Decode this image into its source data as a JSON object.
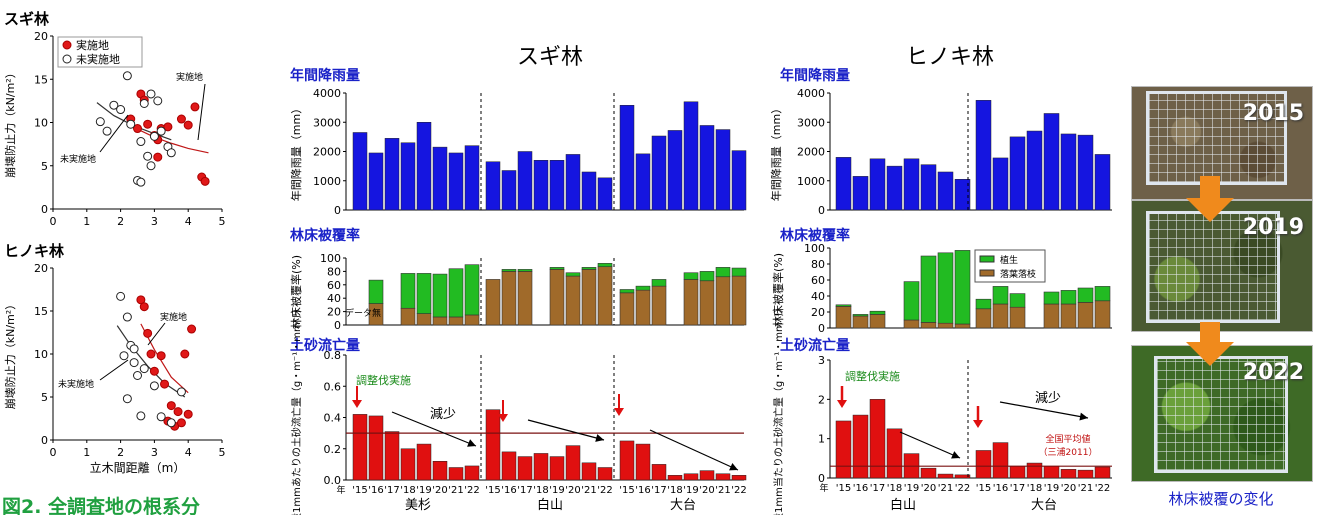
{
  "figure_title": "図2. 全調査地の根系分",
  "scatter_panels": [
    {
      "title": "スギ林",
      "ylabel": "崩壊防止力（kN/m²）",
      "xlabel": "",
      "legend": [
        "実施地",
        "未実施地"
      ],
      "annotations": [
        "実施地",
        "未実施地"
      ],
      "yticks": [
        "0",
        "5",
        "10",
        "15",
        "20"
      ],
      "xticks": [
        "0",
        "1",
        "2",
        "3",
        "4",
        "5"
      ]
    },
    {
      "title": "ヒノキ林",
      "ylabel": "崩壊防止力（kN/m²）",
      "xlabel": "立木間距離（m）",
      "annotations": [
        "実施地",
        "未実施地"
      ],
      "yticks": [
        "0",
        "5",
        "10",
        "15",
        "20"
      ],
      "xticks": [
        "0",
        "1",
        "2",
        "3",
        "4",
        "5"
      ]
    }
  ],
  "sugi": {
    "title": "スギ林",
    "rain_heading": "年間降雨量",
    "rain_ylabel": "年間降雨量（mm）",
    "cover_heading": "林床被覆率",
    "cover_ylabel": "林床被覆率(%)",
    "no_data": "データ無",
    "sed_heading": "土砂流亡量",
    "sed_ylabel": "雨量1mmあたりの土砂流亡量（g・m⁻¹・mm⁻¹）",
    "thinning_label": "調整伐実施",
    "decrease_label": "減少",
    "year_prefix": "年",
    "sites": [
      "美杉",
      "白山",
      "大台"
    ]
  },
  "hinoki": {
    "title": "ヒノキ林",
    "rain_heading": "年間降雨量",
    "rain_ylabel": "年間降雨量（mm）",
    "cover_heading": "林床被覆率",
    "cover_ylabel": "林床被覆率(%)",
    "cover_legend": [
      "植生",
      "落葉落枝"
    ],
    "sed_heading": "土砂流亡量",
    "sed_ylabel": "雨量1mm当たりの土砂流亡量（g・m⁻¹・mm⁻¹）",
    "thinning_label": "調整伐実施",
    "decrease_label": "減少",
    "national_avg": "全国平均値（三浦2011）",
    "year_prefix": "年",
    "sites": [
      "白山",
      "大台"
    ]
  },
  "photos": {
    "years": [
      "2015",
      "2019",
      "2022"
    ],
    "caption": "林床被覆の変化"
  },
  "colors": {
    "rain": "#1515e0",
    "vegetation": "#22bb22",
    "litter": "#a06a2a",
    "sediment": "#e01010",
    "heading": "#1a22c8",
    "arrow_red": "#e01010",
    "photo_arrow": "#f08a1c"
  },
  "chart_data": [
    {
      "type": "scatter",
      "panel": "スギ林",
      "xlim": [
        0,
        5
      ],
      "ylim": [
        0,
        20
      ],
      "series": [
        {
          "name": "実施地",
          "marker": "filled-red",
          "x": [
            2.3,
            2.6,
            2.7,
            3.0,
            3.1,
            3.2,
            3.4,
            3.8,
            4.0,
            4.2,
            4.4,
            4.5,
            2.5,
            2.8,
            3.1
          ],
          "y": [
            10.4,
            13.3,
            12.6,
            8.5,
            8.0,
            9.3,
            9.5,
            10.4,
            9.7,
            11.8,
            3.7,
            3.2,
            9.3,
            9.8,
            6.0
          ]
        },
        {
          "name": "未実施地",
          "marker": "open",
          "x": [
            1.4,
            1.6,
            1.8,
            2.0,
            2.2,
            2.3,
            2.5,
            2.6,
            2.7,
            2.8,
            2.9,
            3.0,
            3.1,
            3.2,
            3.4,
            3.5,
            2.6,
            2.9
          ],
          "y": [
            10.1,
            9.0,
            12.0,
            11.5,
            15.4,
            9.8,
            3.3,
            3.1,
            12.2,
            6.1,
            5.0,
            8.4,
            12.5,
            9.0,
            7.2,
            6.5,
            7.8,
            13.3
          ]
        }
      ],
      "trend_lines": [
        {
          "name": "実施地",
          "x": [
            2.3,
            3.0,
            3.5,
            4.0,
            4.6
          ],
          "y": [
            9.6,
            8.3,
            7.6,
            7.0,
            6.5
          ]
        },
        {
          "name": "未実施地",
          "x": [
            1.3,
            1.8,
            2.4,
            3.0,
            3.5
          ],
          "y": [
            12.3,
            10.8,
            9.6,
            8.7,
            8.0
          ]
        }
      ]
    },
    {
      "type": "scatter",
      "panel": "ヒノキ林",
      "xlim": [
        0,
        5
      ],
      "ylim": [
        0,
        20
      ],
      "xlabel": "立木間距離（m）",
      "series": [
        {
          "name": "実施地",
          "marker": "filled-red",
          "x": [
            2.6,
            2.7,
            2.9,
            3.0,
            3.3,
            3.4,
            3.6,
            3.7,
            3.8,
            4.0,
            4.1,
            2.8,
            3.2,
            3.5,
            3.9
          ],
          "y": [
            16.3,
            15.5,
            10.0,
            8.0,
            6.5,
            2.2,
            1.6,
            3.3,
            2.0,
            3.0,
            12.9,
            12.4,
            9.8,
            4.0,
            10.0
          ]
        },
        {
          "name": "未実施地",
          "marker": "open",
          "x": [
            2.0,
            2.1,
            2.2,
            2.3,
            2.4,
            2.5,
            2.6,
            2.2,
            3.2,
            3.5,
            3.8,
            2.7,
            2.4,
            3.0
          ],
          "y": [
            16.7,
            9.8,
            14.3,
            11.0,
            10.6,
            7.5,
            2.8,
            4.8,
            2.7,
            2.0,
            5.6,
            8.3,
            9.0,
            6.3
          ]
        }
      ],
      "trend_lines": [
        {
          "name": "実施地",
          "x": [
            2.6,
            3.0,
            3.5,
            4.0
          ],
          "y": [
            13.5,
            10.5,
            7.3,
            5.5
          ]
        },
        {
          "name": "未実施地",
          "x": [
            1.9,
            2.3,
            2.8,
            3.3,
            3.9
          ],
          "y": [
            13.3,
            11.0,
            8.6,
            6.6,
            5.0
          ]
        }
      ]
    },
    {
      "type": "bar",
      "panel": "スギ林 年間降雨量",
      "ylim": [
        0,
        4000
      ],
      "yticks": [
        "0",
        "1000",
        "2000",
        "3000",
        "4000"
      ],
      "groups": [
        {
          "site": "美杉",
          "values": [
            2650,
            1950,
            2450,
            2300,
            3000,
            2150,
            1950,
            2200
          ]
        },
        {
          "site": "白山",
          "values": [
            1650,
            1350,
            2000,
            1700,
            1700,
            1900,
            1300,
            1100
          ]
        },
        {
          "site": "大台",
          "values": [
            3580,
            1920,
            2530,
            2720,
            3700,
            2890,
            2750,
            2030
          ]
        }
      ]
    },
    {
      "type": "bar",
      "panel": "スギ林 林床被覆率",
      "ylim": [
        0,
        100
      ],
      "yticks": [
        "0",
        "20",
        "40",
        "60",
        "80",
        "100"
      ],
      "series_names": [
        "植生",
        "落葉落枝"
      ],
      "groups": [
        {
          "site": "美杉",
          "vegetation": [
            null,
            35,
            null,
            52,
            60,
            64,
            72,
            75
          ],
          "litter": [
            null,
            32,
            null,
            25,
            17,
            12,
            12,
            15
          ]
        },
        {
          "site": "白山",
          "vegetation": [
            0,
            3,
            3,
            null,
            3,
            5,
            3,
            5
          ],
          "litter": [
            68,
            80,
            80,
            null,
            83,
            73,
            83,
            87
          ]
        },
        {
          "site": "大台",
          "vegetation": [
            5,
            6,
            10,
            null,
            10,
            14,
            14,
            12
          ],
          "litter": [
            48,
            52,
            58,
            null,
            68,
            66,
            72,
            73
          ]
        }
      ]
    },
    {
      "type": "bar",
      "panel": "スギ林 土砂流亡量",
      "ylim": [
        0,
        0.8
      ],
      "yticks": [
        "0.0",
        "0.2",
        "0.4",
        "0.6",
        "0.8"
      ],
      "x_tick_labels": [
        "'15",
        "'16",
        "'17",
        "'18",
        "'19",
        "'20",
        "'21",
        "'22"
      ],
      "national_average": 0.3,
      "groups": [
        {
          "site": "美杉",
          "values": [
            0.42,
            0.41,
            0.31,
            0.2,
            0.23,
            0.12,
            0.08,
            0.09
          ]
        },
        {
          "site": "白山",
          "values": [
            0.45,
            0.18,
            0.15,
            0.17,
            0.15,
            0.22,
            0.11,
            0.08
          ]
        },
        {
          "site": "大台",
          "values": [
            0.25,
            0.23,
            0.1,
            0.03,
            0.04,
            0.06,
            0.04,
            0.03
          ]
        }
      ]
    },
    {
      "type": "bar",
      "panel": "ヒノキ林 年間降雨量",
      "ylim": [
        0,
        4000
      ],
      "yticks": [
        "0",
        "1000",
        "2000",
        "3000",
        "4000"
      ],
      "groups": [
        {
          "site": "白山",
          "values": [
            1800,
            1150,
            1750,
            1500,
            1750,
            1550,
            1300,
            1050
          ]
        },
        {
          "site": "大台",
          "values": [
            3750,
            1780,
            2500,
            2700,
            3300,
            2600,
            2560,
            1900
          ]
        }
      ]
    },
    {
      "type": "bar",
      "panel": "ヒノキ林 林床被覆率",
      "ylim": [
        0,
        100
      ],
      "yticks": [
        "0",
        "20",
        "40",
        "60",
        "80",
        "100"
      ],
      "legend": [
        "植生",
        "落葉落枝"
      ],
      "groups": [
        {
          "site": "白山",
          "vegetation": [
            2,
            2,
            4,
            null,
            48,
            83,
            88,
            92
          ],
          "litter": [
            27,
            15,
            17,
            null,
            10,
            7,
            6,
            5
          ]
        },
        {
          "site": "大台",
          "vegetation": [
            12,
            22,
            17,
            null,
            15,
            17,
            18,
            18
          ],
          "litter": [
            24,
            30,
            26,
            null,
            30,
            30,
            32,
            34
          ]
        }
      ]
    },
    {
      "type": "bar",
      "panel": "ヒノキ林 土砂流亡量",
      "ylim": [
        0,
        3
      ],
      "yticks": [
        "0",
        "1",
        "2",
        "3"
      ],
      "x_tick_labels": [
        "'15",
        "'16",
        "'17",
        "'18",
        "'19",
        "'20",
        "'21",
        "'22"
      ],
      "national_average": 0.3,
      "groups": [
        {
          "site": "白山",
          "values": [
            1.45,
            1.6,
            2.0,
            1.25,
            0.62,
            0.25,
            0.1,
            0.08
          ]
        },
        {
          "site": "大台",
          "values": [
            0.7,
            0.9,
            0.3,
            0.38,
            0.3,
            0.22,
            0.2,
            0.28
          ]
        }
      ]
    }
  ]
}
